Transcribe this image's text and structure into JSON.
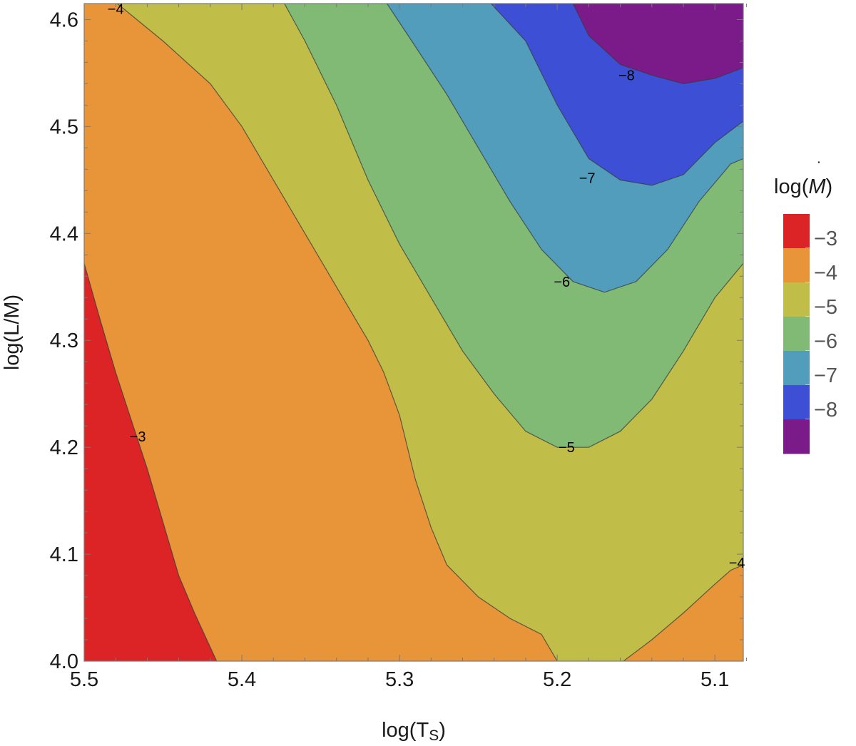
{
  "chart_data": {
    "type": "contour",
    "xlabel": "log(T",
    "xlabel_sub": "S",
    "xlabel_close": ")",
    "ylabel": "log(L/M)",
    "x_axis": {
      "reversed": true,
      "range": [
        5.5,
        5.082
      ],
      "ticks": [
        {
          "v": 5.5,
          "label": "5.5"
        },
        {
          "v": 5.4,
          "label": "5.4"
        },
        {
          "v": 5.3,
          "label": "5.3"
        },
        {
          "v": 5.2,
          "label": "5.2"
        },
        {
          "v": 5.1,
          "label": "5.1"
        }
      ]
    },
    "y_axis": {
      "range": [
        4.0,
        4.615
      ],
      "ticks": [
        {
          "v": 4.0,
          "label": "4.0"
        },
        {
          "v": 4.1,
          "label": "4.1"
        },
        {
          "v": 4.2,
          "label": "4.2"
        },
        {
          "v": 4.3,
          "label": "4.3"
        },
        {
          "v": 4.4,
          "label": "4.4"
        },
        {
          "v": 4.5,
          "label": "4.5"
        },
        {
          "v": 4.6,
          "label": "4.6"
        }
      ]
    },
    "contour_levels": [
      {
        "level": -3,
        "color": "#dc2325",
        "points": [
          [
            5.5,
            4.372
          ],
          [
            5.49,
            4.32
          ],
          [
            5.48,
            4.27
          ],
          [
            5.47,
            4.225
          ],
          [
            5.46,
            4.18
          ],
          [
            5.45,
            4.13
          ],
          [
            5.44,
            4.08
          ],
          [
            5.43,
            4.045
          ],
          [
            5.416,
            4.0
          ]
        ]
      },
      {
        "level": -4,
        "color": "#e8953a",
        "points": [
          [
            5.479,
            4.615
          ],
          [
            5.45,
            4.58
          ],
          [
            5.42,
            4.54
          ],
          [
            5.4,
            4.5
          ],
          [
            5.38,
            4.45
          ],
          [
            5.36,
            4.4
          ],
          [
            5.34,
            4.35
          ],
          [
            5.32,
            4.3
          ],
          [
            5.31,
            4.27
          ],
          [
            5.3,
            4.23
          ],
          [
            5.29,
            4.17
          ],
          [
            5.28,
            4.125
          ],
          [
            5.27,
            4.09
          ],
          [
            5.25,
            4.06
          ],
          [
            5.23,
            4.04
          ],
          [
            5.21,
            4.025
          ],
          [
            5.2,
            4.0
          ]
        ]
      },
      {
        "level": -4,
        "color": "#e8953a",
        "points": [
          [
            5.158,
            4.0
          ],
          [
            5.14,
            4.02
          ],
          [
            5.12,
            4.045
          ],
          [
            5.1,
            4.072
          ],
          [
            5.09,
            4.085
          ],
          [
            5.082,
            4.09
          ]
        ]
      },
      {
        "level": -5,
        "color": "#c0bd48",
        "points": [
          [
            5.373,
            4.615
          ],
          [
            5.36,
            4.58
          ],
          [
            5.34,
            4.52
          ],
          [
            5.32,
            4.45
          ],
          [
            5.3,
            4.39
          ],
          [
            5.28,
            4.34
          ],
          [
            5.26,
            4.29
          ],
          [
            5.24,
            4.25
          ],
          [
            5.22,
            4.215
          ],
          [
            5.2,
            4.2
          ],
          [
            5.18,
            4.2
          ],
          [
            5.16,
            4.215
          ],
          [
            5.14,
            4.245
          ],
          [
            5.12,
            4.29
          ],
          [
            5.1,
            4.34
          ],
          [
            5.082,
            4.372
          ]
        ]
      },
      {
        "level": -6,
        "color": "#80ba75",
        "points": [
          [
            5.308,
            4.615
          ],
          [
            5.29,
            4.575
          ],
          [
            5.27,
            4.53
          ],
          [
            5.25,
            4.48
          ],
          [
            5.23,
            4.43
          ],
          [
            5.21,
            4.385
          ],
          [
            5.19,
            4.355
          ],
          [
            5.17,
            4.345
          ],
          [
            5.15,
            4.355
          ],
          [
            5.13,
            4.385
          ],
          [
            5.11,
            4.43
          ],
          [
            5.09,
            4.465
          ],
          [
            5.082,
            4.47
          ]
        ]
      },
      {
        "level": -7,
        "color": "#529cbc",
        "points": [
          [
            5.242,
            4.615
          ],
          [
            5.22,
            4.58
          ],
          [
            5.2,
            4.52
          ],
          [
            5.18,
            4.47
          ],
          [
            5.16,
            4.45
          ],
          [
            5.14,
            4.445
          ],
          [
            5.12,
            4.455
          ],
          [
            5.1,
            4.485
          ],
          [
            5.082,
            4.505
          ]
        ]
      },
      {
        "level": -8,
        "color": "#3d4fd4",
        "points": [
          [
            5.19,
            4.615
          ],
          [
            5.18,
            4.585
          ],
          [
            5.16,
            4.558
          ],
          [
            5.14,
            4.548
          ],
          [
            5.12,
            4.54
          ],
          [
            5.1,
            4.545
          ],
          [
            5.082,
            4.555
          ]
        ]
      }
    ],
    "band_colors": [
      "#dc2325",
      "#e8953a",
      "#c0bd48",
      "#80ba75",
      "#529cbc",
      "#3d4fd4",
      "#7b1b8a"
    ],
    "contour_labels": [
      {
        "text": "−3",
        "x": 5.466,
        "y": 4.21
      },
      {
        "text": "−4",
        "x": 5.48,
        "y": 4.61
      },
      {
        "text": "−4",
        "x": 5.086,
        "y": 4.092
      },
      {
        "text": "−5",
        "x": 5.194,
        "y": 4.2
      },
      {
        "text": "−6",
        "x": 5.197,
        "y": 4.355
      },
      {
        "text": "−7",
        "x": 5.181,
        "y": 4.452
      },
      {
        "text": "−8",
        "x": 5.156,
        "y": 4.548
      }
    ],
    "legend": {
      "title_pre": "log(",
      "title_sym": "M",
      "title_post": ")",
      "position": "right",
      "bands": [
        {
          "color": "#dc2325",
          "label": "−3"
        },
        {
          "color": "#e8953a",
          "label": "−4"
        },
        {
          "color": "#c0bd48",
          "label": "−5"
        },
        {
          "color": "#80ba75",
          "label": "−6"
        },
        {
          "color": "#529cbc",
          "label": "−7"
        },
        {
          "color": "#3d4fd4",
          "label": "−8"
        },
        {
          "color": "#7b1b8a",
          "label": ""
        }
      ]
    }
  }
}
